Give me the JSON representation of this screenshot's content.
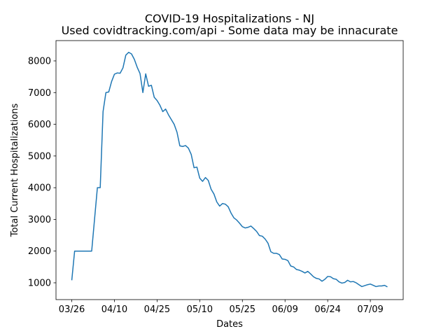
{
  "chart_data": {
    "type": "line",
    "title": "COVID-19 Hospitalizations - NJ",
    "subtitle": "Used covidtracking.com/api - Some data may be innacurate",
    "x_label": "Dates",
    "y_label": "Total Current Hospitalizations",
    "x": [
      "03/26",
      "03/27",
      "03/28",
      "03/29",
      "03/30",
      "03/31",
      "04/01",
      "04/02",
      "04/03",
      "04/04",
      "04/05",
      "04/06",
      "04/07",
      "04/08",
      "04/09",
      "04/10",
      "04/11",
      "04/12",
      "04/13",
      "04/14",
      "04/15",
      "04/16",
      "04/17",
      "04/18",
      "04/19",
      "04/20",
      "04/21",
      "04/22",
      "04/23",
      "04/24",
      "04/25",
      "04/26",
      "04/27",
      "04/28",
      "04/29",
      "04/30",
      "05/01",
      "05/02",
      "05/03",
      "05/04",
      "05/05",
      "05/06",
      "05/07",
      "05/08",
      "05/09",
      "05/10",
      "05/11",
      "05/12",
      "05/13",
      "05/14",
      "05/15",
      "05/16",
      "05/17",
      "05/18",
      "05/19",
      "05/20",
      "05/21",
      "05/22",
      "05/23",
      "05/24",
      "05/25",
      "05/26",
      "05/27",
      "05/28",
      "05/29",
      "05/30",
      "05/31",
      "06/01",
      "06/02",
      "06/03",
      "06/04",
      "06/05",
      "06/06",
      "06/07",
      "06/08",
      "06/09",
      "06/10",
      "06/11",
      "06/12",
      "06/13",
      "06/14",
      "06/15",
      "06/16",
      "06/17",
      "06/18",
      "06/19",
      "06/20",
      "06/21",
      "06/22",
      "06/23",
      "06/24",
      "06/25",
      "06/26",
      "06/27",
      "06/28",
      "06/29",
      "06/30",
      "07/01",
      "07/02",
      "07/03",
      "07/04",
      "07/05",
      "07/06",
      "07/07",
      "07/08",
      "07/09",
      "07/10",
      "07/11",
      "07/12",
      "07/13",
      "07/14",
      "07/15"
    ],
    "series": [
      {
        "color": "#1f77b4",
        "values": [
          1080,
          2000,
          2000,
          2000,
          2000,
          2000,
          2000,
          2000,
          3000,
          4000,
          4000,
          6400,
          7000,
          7020,
          7350,
          7580,
          7620,
          7610,
          7780,
          8180,
          8270,
          8220,
          8050,
          7800,
          7600,
          7000,
          7590,
          7200,
          7230,
          6850,
          6750,
          6600,
          6400,
          6480,
          6300,
          6150,
          6000,
          5750,
          5320,
          5300,
          5330,
          5250,
          5050,
          4630,
          4650,
          4300,
          4200,
          4320,
          4230,
          3950,
          3800,
          3550,
          3420,
          3500,
          3480,
          3400,
          3200,
          3050,
          2980,
          2880,
          2770,
          2730,
          2750,
          2790,
          2710,
          2620,
          2490,
          2470,
          2380,
          2250,
          1980,
          1930,
          1930,
          1890,
          1750,
          1740,
          1700,
          1530,
          1500,
          1420,
          1400,
          1360,
          1310,
          1360,
          1280,
          1190,
          1140,
          1120,
          1050,
          1110,
          1200,
          1190,
          1130,
          1110,
          1030,
          990,
          1010,
          1080,
          1030,
          1040,
          1000,
          940,
          880,
          910,
          940,
          960,
          920,
          880,
          900,
          900,
          920,
          870
        ]
      }
    ],
    "xticks": [
      "03/26",
      "04/10",
      "04/25",
      "05/10",
      "05/25",
      "06/09",
      "06/24",
      "07/09"
    ],
    "ylim": [
      470,
      8640
    ],
    "yticks": [
      1000,
      2000,
      3000,
      4000,
      5000,
      6000,
      7000,
      8000
    ],
    "grid": false
  }
}
